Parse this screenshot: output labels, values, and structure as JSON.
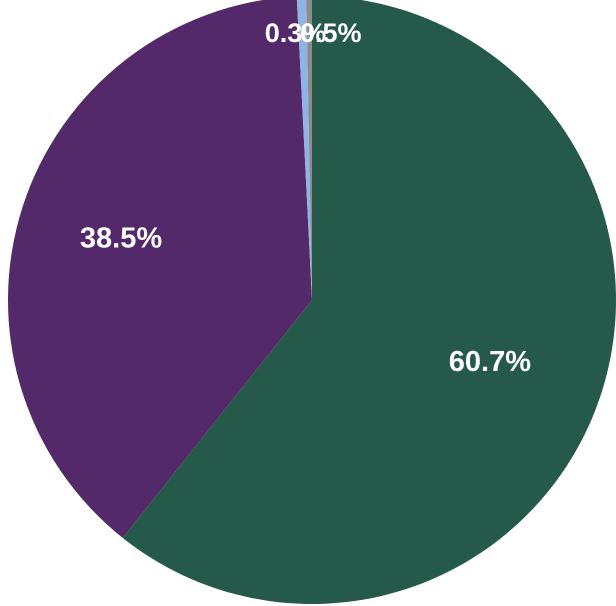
{
  "chart_data": {
    "type": "pie",
    "title": "",
    "start_angle_deg": 0,
    "direction": "clockwise",
    "slices": [
      {
        "label": "60.7%",
        "value": 60.7,
        "color": "#255a4b"
      },
      {
        "label": "38.5%",
        "value": 38.5,
        "color": "#53296a"
      },
      {
        "label": "0.5%",
        "value": 0.5,
        "color": "#8fb3e3"
      },
      {
        "label": "0.3%",
        "value": 0.3,
        "color": "#8c8c8c"
      }
    ]
  }
}
